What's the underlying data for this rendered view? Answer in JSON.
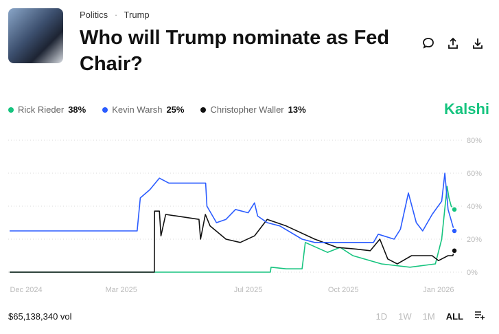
{
  "header": {
    "category": "Politics",
    "separator": "·",
    "subcategory": "Trump",
    "title": "Who will Trump nominate as Fed Chair?"
  },
  "actions": [
    "comment-icon",
    "share-icon",
    "download-icon"
  ],
  "brand": "Kalshi",
  "footer": {
    "volume": "$65,138,340 vol",
    "ranges": [
      "1D",
      "1W",
      "1M",
      "ALL"
    ],
    "active_range": "ALL"
  },
  "chart_data": {
    "type": "line",
    "title": "Who will Trump nominate as Fed Chair?",
    "x_unit": "months since Dec 2024",
    "xlim": [
      -0.52,
      13.5
    ],
    "ylim": [
      0,
      80
    ],
    "yticks": [
      0,
      20,
      40,
      60,
      80
    ],
    "ytick_labels": [
      "0%",
      "20%",
      "40%",
      "60%",
      "80%"
    ],
    "xticks": [
      0,
      3,
      7,
      10,
      13
    ],
    "xtick_labels": [
      "Dec 2024",
      "Mar 2025",
      "Jul 2025",
      "Oct 2025",
      "Jan 2026"
    ],
    "grid": true,
    "legend_position": "top-left",
    "series": [
      {
        "name": "Rick Rieder",
        "value_label": "38%",
        "color": "#16c47f",
        "x": [
          -0.52,
          7.7,
          7.72,
          8.2,
          8.7,
          8.8,
          9.5,
          9.9,
          10.3,
          11.2,
          12.1,
          12.9,
          13.1,
          13.27,
          13.33,
          13.4,
          13.5
        ],
        "y": [
          0,
          0,
          3,
          2,
          2,
          18,
          12,
          15,
          10,
          5,
          3,
          5,
          20,
          52,
          45,
          40,
          38
        ]
      },
      {
        "name": "Kevin Warsh",
        "value_label": "25%",
        "color": "#2b5cff",
        "x": [
          -0.52,
          3.5,
          3.6,
          3.9,
          4.2,
          4.5,
          5.66,
          5.7,
          6.0,
          6.3,
          6.6,
          7.0,
          7.2,
          7.3,
          7.6,
          8.0,
          8.7,
          9.1,
          10.2,
          10.95,
          11.1,
          11.6,
          11.8,
          12.05,
          12.3,
          12.5,
          12.8,
          13.1,
          13.2,
          13.3,
          13.45,
          13.5
        ],
        "y": [
          25,
          25,
          45,
          50,
          57,
          54,
          54,
          40,
          30,
          32,
          38,
          36,
          42,
          34,
          30,
          28,
          20,
          18,
          18,
          18,
          23,
          20,
          26,
          48,
          30,
          25,
          35,
          43,
          60,
          38,
          28,
          25
        ]
      },
      {
        "name": "Christopher Waller",
        "value_label": "13%",
        "color": "#111111",
        "x": [
          -0.52,
          4.04,
          4.05,
          4.2,
          4.25,
          4.4,
          5.45,
          5.5,
          5.65,
          5.8,
          6.3,
          6.75,
          7.2,
          7.6,
          8.2,
          9.1,
          9.8,
          10.4,
          10.85,
          11.15,
          11.4,
          11.7,
          12.15,
          12.8,
          13.0,
          13.3,
          13.45,
          13.5
        ],
        "y": [
          0,
          0,
          37,
          37,
          22,
          35,
          32,
          20,
          35,
          28,
          20,
          18,
          22,
          32,
          28,
          20,
          15,
          14,
          13,
          20,
          8,
          5,
          10,
          10,
          7,
          10,
          10,
          13
        ]
      }
    ]
  }
}
